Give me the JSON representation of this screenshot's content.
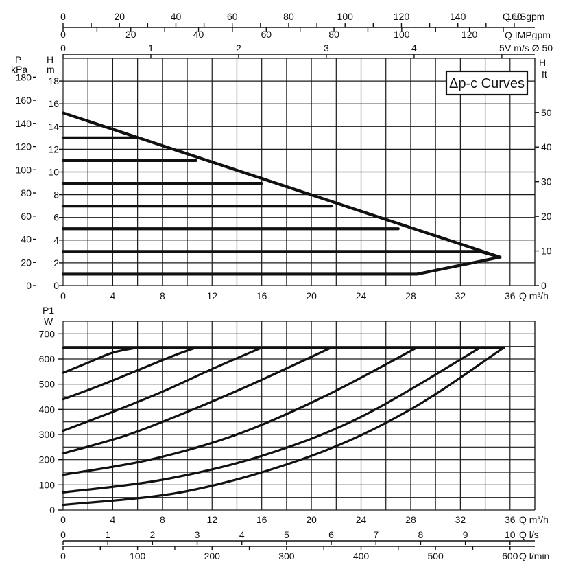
{
  "chart_data": [
    {
      "type": "line",
      "title": "",
      "legend": "Δp-c Curves",
      "legend_position": "top-right",
      "grid": true,
      "x": {
        "label": "Q m³/h",
        "ticks": [
          "0",
          "4",
          "8",
          "12",
          "16",
          "20",
          "24",
          "28",
          "32",
          "36"
        ],
        "range": [
          0,
          38
        ]
      },
      "y_left_outer": {
        "label_top": "P",
        "label_unit": "kPa",
        "ticks": [
          "0",
          "20",
          "40",
          "60",
          "80",
          "100",
          "120",
          "140",
          "160",
          "180"
        ]
      },
      "y_left_inner": {
        "label_top": "H",
        "label_unit": "m",
        "ticks": [
          "0",
          "2",
          "4",
          "6",
          "8",
          "10",
          "12",
          "14",
          "16",
          "18"
        ],
        "range": [
          0,
          20
        ]
      },
      "y_right": {
        "label_top": "H",
        "label_unit": "ft",
        "ticks": [
          "0",
          "10",
          "20",
          "30",
          "40",
          "50"
        ]
      },
      "top_axes": [
        {
          "label": "Q USgpm",
          "ticks": [
            "0",
            "20",
            "40",
            "60",
            "80",
            "100",
            "120",
            "140",
            "160"
          ]
        },
        {
          "label": "Q IMPgpm",
          "ticks": [
            "0",
            "20",
            "40",
            "60",
            "80",
            "100",
            "120"
          ]
        },
        {
          "label": "V m/s Ø 50",
          "ticks": [
            "0",
            "1",
            "2",
            "3",
            "4",
            "5"
          ]
        }
      ],
      "series": [
        {
          "x": [
            0,
            35.2
          ],
          "y": [
            15.2,
            2.5
          ]
        },
        {
          "x": [
            0,
            6
          ],
          "y": [
            13,
            13
          ]
        },
        {
          "x": [
            0,
            10.7
          ],
          "y": [
            11,
            11
          ]
        },
        {
          "x": [
            0,
            16
          ],
          "y": [
            9,
            9
          ]
        },
        {
          "x": [
            0,
            21.6
          ],
          "y": [
            7,
            7
          ]
        },
        {
          "x": [
            0,
            27
          ],
          "y": [
            5,
            5
          ]
        },
        {
          "x": [
            0,
            33.6,
            35.2
          ],
          "y": [
            3,
            3,
            2.5
          ]
        },
        {
          "x": [
            0,
            28.5,
            35.2
          ],
          "y": [
            1,
            1,
            2.5
          ]
        }
      ]
    },
    {
      "type": "line",
      "title": "",
      "grid": true,
      "x": {
        "label": "Q m³/h",
        "ticks": [
          "0",
          "4",
          "8",
          "12",
          "16",
          "20",
          "24",
          "28",
          "32",
          "36"
        ],
        "range": [
          0,
          38
        ]
      },
      "y": {
        "label_top": "P1",
        "label_unit": "W",
        "ticks": [
          "0",
          "100",
          "200",
          "300",
          "400",
          "500",
          "600",
          "700"
        ],
        "range": [
          0,
          750
        ]
      },
      "bottom_axes": [
        {
          "label": "Q l/s",
          "ticks": [
            "0",
            "1",
            "2",
            "3",
            "4",
            "5",
            "6",
            "7",
            "8",
            "9",
            "10"
          ]
        },
        {
          "label": "Q l/min",
          "ticks": [
            "0",
            "100",
            "200",
            "300",
            "400",
            "500",
            "600"
          ]
        }
      ],
      "series": [
        {
          "x": [
            0,
            35.5
          ],
          "y": [
            645,
            645
          ]
        },
        {
          "x": [
            0,
            2,
            4,
            6
          ],
          "y": [
            545,
            585,
            625,
            645
          ]
        },
        {
          "x": [
            0,
            3,
            6,
            9,
            10.7
          ],
          "y": [
            440,
            495,
            555,
            615,
            645
          ]
        },
        {
          "x": [
            0,
            4,
            8,
            12,
            16
          ],
          "y": [
            315,
            390,
            470,
            560,
            645
          ]
        },
        {
          "x": [
            0,
            5,
            10,
            15,
            21.6
          ],
          "y": [
            225,
            295,
            390,
            495,
            645
          ]
        },
        {
          "x": [
            0,
            7,
            14,
            21,
            28.5
          ],
          "y": [
            140,
            200,
            300,
            450,
            645
          ]
        },
        {
          "x": [
            0,
            8,
            16,
            24,
            33.6
          ],
          "y": [
            70,
            120,
            215,
            370,
            645
          ]
        },
        {
          "x": [
            0,
            10,
            20,
            28,
            35.5
          ],
          "y": [
            20,
            75,
            215,
            400,
            645
          ]
        }
      ]
    }
  ]
}
